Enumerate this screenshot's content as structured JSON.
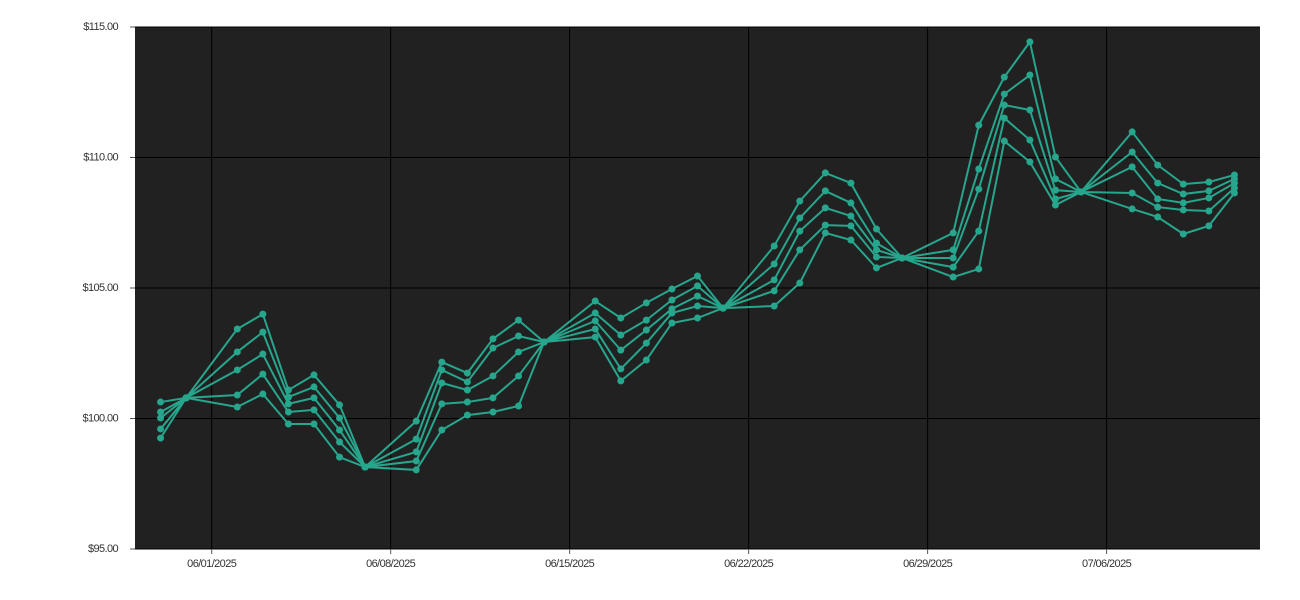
{
  "chart_data": {
    "type": "line",
    "x": [
      "2025-05-30",
      "2025-05-31",
      "2025-06-02",
      "2025-06-03",
      "2025-06-04",
      "2025-06-05",
      "2025-06-06",
      "2025-06-07",
      "2025-06-09",
      "2025-06-10",
      "2025-06-11",
      "2025-06-12",
      "2025-06-13",
      "2025-06-14",
      "2025-06-16",
      "2025-06-17",
      "2025-06-18",
      "2025-06-19",
      "2025-06-20",
      "2025-06-21",
      "2025-06-23",
      "2025-06-24",
      "2025-06-25",
      "2025-06-26",
      "2025-06-27",
      "2025-06-28",
      "2025-06-30",
      "2025-07-01",
      "2025-07-02",
      "2025-07-03",
      "2025-07-04",
      "2025-07-05",
      "2025-07-07",
      "2025-07-08",
      "2025-07-09",
      "2025-07-10",
      "2025-07-11"
    ],
    "series": [
      {
        "color": "#26a68c",
        "values": [
          100.63,
          100.79,
          103.43,
          104.0,
          101.09,
          101.67,
          100.52,
          98.14,
          99.9,
          102.16,
          101.74,
          103.05,
          103.77,
          102.93,
          104.5,
          103.85,
          104.43,
          104.96,
          105.46,
          104.23,
          106.61,
          108.33,
          109.41,
          109.02,
          107.26,
          106.15,
          107.11,
          111.24,
          113.08,
          114.43,
          110.02,
          108.68,
          110.98,
          109.71,
          108.98,
          109.06,
          109.33
        ]
      },
      {
        "color": "#26a68c",
        "values": [
          100.25,
          100.79,
          102.55,
          103.31,
          100.82,
          101.21,
          100.02,
          98.14,
          99.21,
          101.86,
          101.4,
          102.7,
          103.16,
          102.93,
          104.04,
          103.2,
          103.77,
          104.54,
          105.08,
          104.23,
          105.92,
          107.68,
          108.72,
          108.26,
          106.72,
          106.15,
          106.46,
          109.56,
          112.43,
          113.16,
          109.18,
          108.68,
          110.21,
          109.02,
          108.6,
          108.72,
          109.18
        ]
      },
      {
        "color": "#26a68c",
        "values": [
          100.02,
          100.79,
          101.86,
          102.47,
          100.56,
          100.79,
          99.56,
          98.14,
          98.72,
          101.36,
          101.09,
          101.63,
          102.55,
          102.93,
          103.74,
          102.62,
          103.39,
          104.2,
          104.69,
          104.23,
          105.31,
          107.18,
          108.07,
          107.76,
          106.46,
          106.15,
          106.15,
          108.79,
          112.01,
          111.82,
          108.75,
          108.68,
          109.64,
          108.41,
          108.26,
          108.45,
          109.02
        ]
      },
      {
        "color": "#26a68c",
        "values": [
          99.6,
          100.79,
          100.9,
          101.7,
          100.25,
          100.33,
          99.1,
          98.14,
          98.37,
          100.56,
          100.63,
          100.79,
          101.63,
          102.93,
          103.43,
          101.9,
          102.89,
          104.04,
          104.31,
          104.23,
          104.89,
          106.46,
          107.41,
          107.38,
          106.19,
          106.15,
          105.8,
          107.18,
          111.51,
          110.67,
          108.41,
          108.68,
          108.64,
          108.1,
          107.99,
          107.95,
          108.83
        ]
      },
      {
        "color": "#26a68c",
        "values": [
          99.25,
          100.79,
          100.44,
          100.94,
          99.79,
          99.79,
          98.52,
          98.14,
          98.03,
          99.56,
          100.13,
          100.25,
          100.48,
          102.93,
          103.12,
          101.44,
          102.24,
          103.66,
          103.85,
          104.23,
          104.31,
          105.19,
          107.11,
          106.84,
          105.77,
          106.15,
          105.42,
          105.73,
          110.63,
          109.83,
          108.18,
          108.68,
          108.03,
          107.72,
          107.07,
          107.38,
          108.64
        ]
      }
    ],
    "xlim": [
      "2025-05-29",
      "2025-07-12"
    ],
    "xticks": [
      {
        "value": "2025-06-01",
        "label": "06/01/2025"
      },
      {
        "value": "2025-06-08",
        "label": "06/08/2025"
      },
      {
        "value": "2025-06-15",
        "label": "06/15/2025"
      },
      {
        "value": "2025-06-22",
        "label": "06/22/2025"
      },
      {
        "value": "2025-06-29",
        "label": "06/29/2025"
      },
      {
        "value": "2025-07-06",
        "label": "07/06/2025"
      }
    ],
    "ylim": [
      95,
      115
    ],
    "yticks": [
      {
        "value": 95,
        "label": "$95.00"
      },
      {
        "value": 100,
        "label": "$100.00"
      },
      {
        "value": 105,
        "label": "$105.00"
      },
      {
        "value": 110,
        "label": "$110.00"
      },
      {
        "value": 115,
        "label": "$115.00"
      }
    ],
    "grid": true
  }
}
